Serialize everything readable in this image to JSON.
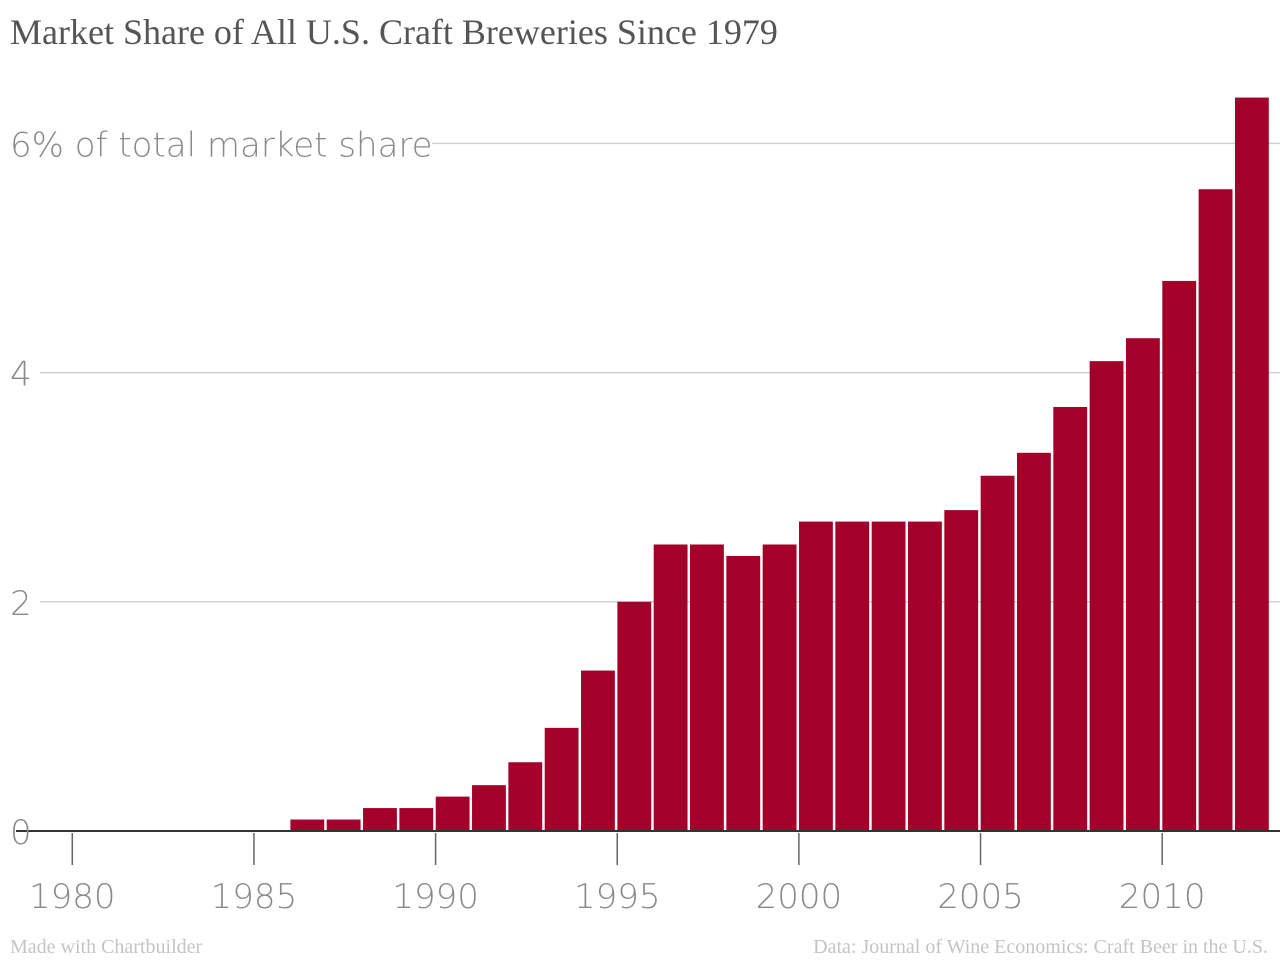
{
  "chart_data": {
    "type": "bar",
    "title": "Market Share of All U.S. Craft Breweries Since 1979",
    "x": [
      1979,
      1980,
      1981,
      1982,
      1983,
      1984,
      1985,
      1986,
      1987,
      1988,
      1989,
      1990,
      1991,
      1992,
      1993,
      1994,
      1995,
      1996,
      1997,
      1998,
      1999,
      2000,
      2001,
      2002,
      2003,
      2004,
      2005,
      2006,
      2007,
      2008,
      2009,
      2010,
      2011,
      2012
    ],
    "values": [
      0,
      0,
      0,
      0,
      0,
      0,
      0,
      0.1,
      0.1,
      0.2,
      0.2,
      0.3,
      0.4,
      0.6,
      0.9,
      1.4,
      2.0,
      2.5,
      2.5,
      2.4,
      2.5,
      2.7,
      2.7,
      2.7,
      2.7,
      2.8,
      3.1,
      3.3,
      3.7,
      4.1,
      4.3,
      4.8,
      5.6,
      6.4
    ],
    "y_ticks": [
      {
        "value": 0,
        "label": "0"
      },
      {
        "value": 2,
        "label": "2"
      },
      {
        "value": 4,
        "label": "4"
      },
      {
        "value": 6,
        "label": "6% of total market share"
      }
    ],
    "x_ticks": [
      {
        "value": 1980,
        "label": "1980"
      },
      {
        "value": 1985,
        "label": "1985"
      },
      {
        "value": 1990,
        "label": "1990"
      },
      {
        "value": 1995,
        "label": "1995"
      },
      {
        "value": 2000,
        "label": "2000"
      },
      {
        "value": 2005,
        "label": "2005"
      },
      {
        "value": 2010,
        "label": "2010"
      }
    ],
    "ylim": [
      0,
      6.4
    ],
    "xlim": [
      1978.5,
      2012.5
    ],
    "xlabel": "",
    "ylabel": "",
    "grid": true,
    "legend": "none",
    "bar_color": "#a3002a"
  },
  "footer": {
    "credit": "Made with Chartbuilder",
    "source": "Data: Journal of Wine Economics: Craft Beer in the U.S."
  }
}
